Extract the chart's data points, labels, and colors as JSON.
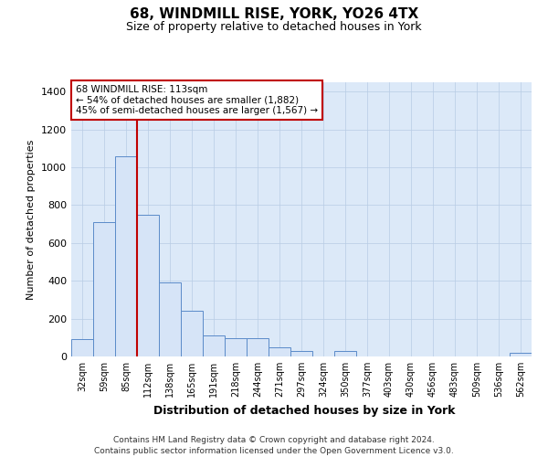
{
  "title1": "68, WINDMILL RISE, YORK, YO26 4TX",
  "title2": "Size of property relative to detached houses in York",
  "xlabel": "Distribution of detached houses by size in York",
  "ylabel": "Number of detached properties",
  "bar_labels": [
    "32sqm",
    "59sqm",
    "85sqm",
    "112sqm",
    "138sqm",
    "165sqm",
    "191sqm",
    "218sqm",
    "244sqm",
    "271sqm",
    "297sqm",
    "324sqm",
    "350sqm",
    "377sqm",
    "403sqm",
    "430sqm",
    "456sqm",
    "483sqm",
    "509sqm",
    "536sqm",
    "562sqm"
  ],
  "bar_values": [
    90,
    710,
    1060,
    750,
    390,
    240,
    110,
    95,
    95,
    50,
    30,
    0,
    30,
    0,
    0,
    0,
    0,
    0,
    0,
    0,
    20
  ],
  "bar_color": "#d6e4f7",
  "bar_edge_color": "#5b8bc9",
  "vline_color": "#c00000",
  "annotation_line1": "68 WINDMILL RISE: 113sqm",
  "annotation_line2": "← 54% of detached houses are smaller (1,882)",
  "annotation_line3": "45% of semi-detached houses are larger (1,567) →",
  "annotation_box_color": "#ffffff",
  "annotation_box_edge": "#c00000",
  "ylim": [
    0,
    1450
  ],
  "yticks": [
    0,
    200,
    400,
    600,
    800,
    1000,
    1200,
    1400
  ],
  "footer1": "Contains HM Land Registry data © Crown copyright and database right 2024.",
  "footer2": "Contains public sector information licensed under the Open Government Licence v3.0.",
  "bg_color": "#dce9f8",
  "grid_color": "#b8cce4"
}
